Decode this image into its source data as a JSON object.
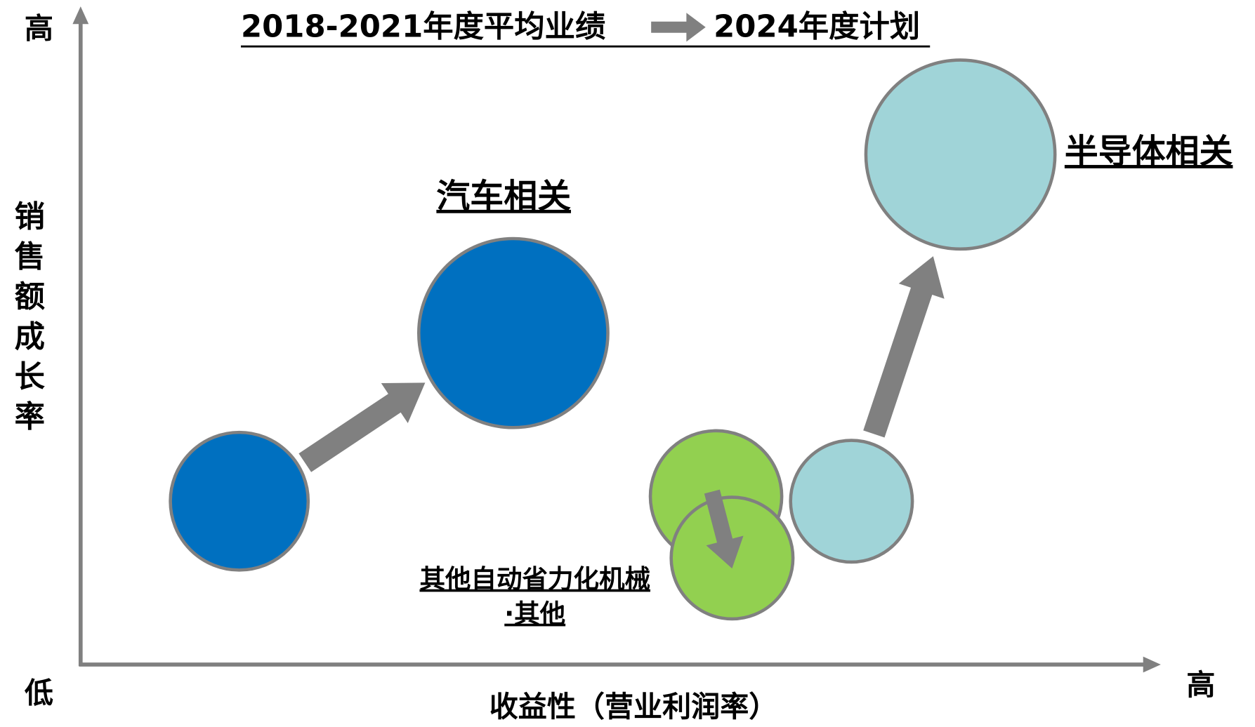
{
  "title": {
    "from": "2018-2021年度平均业绩",
    "to": "2024年度计划"
  },
  "axes": {
    "y_label": "销售额成长率",
    "y_high": "高",
    "x_low": "低",
    "x_high": "高",
    "x_label": "收益性（营业利润率）"
  },
  "groups": [
    {
      "label_lines": [
        "汽车相关"
      ]
    },
    {
      "label_lines": [
        "半导体相关"
      ]
    },
    {
      "label_lines": [
        "其他自动省力化机械",
        "·其他"
      ]
    }
  ]
}
